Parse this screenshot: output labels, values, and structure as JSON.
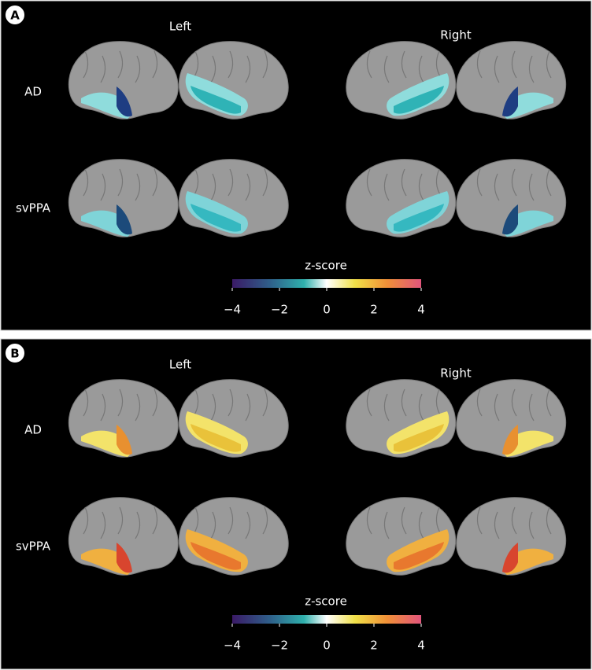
{
  "panels": [
    {
      "label": "A",
      "left": "Left",
      "right": "Right",
      "rows": [
        "AD",
        "svPPA"
      ],
      "colorbar": {
        "title": "z-score",
        "ticks": [
          "−4",
          "−2",
          "0",
          "2",
          "4"
        ]
      }
    },
    {
      "label": "B",
      "left": "Left",
      "right": "Right",
      "rows": [
        "AD",
        "svPPA"
      ],
      "colorbar": {
        "title": "z-score",
        "ticks": [
          "−4",
          "−2",
          "0",
          "2",
          "4"
        ]
      }
    }
  ]
}
